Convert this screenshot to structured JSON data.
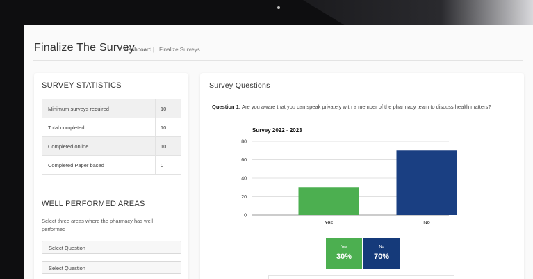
{
  "header": {
    "title": "Finalize The Survey",
    "breadcrumb_dashboard": "Dashboard",
    "breadcrumb_separator": "|",
    "breadcrumb_current": "Finalize Surveys"
  },
  "statistics": {
    "heading": "SURVEY STATISTICS",
    "rows": [
      {
        "label": "Minimum surveys required",
        "value": "10"
      },
      {
        "label": "Total completed",
        "value": "10"
      },
      {
        "label": "Completed online",
        "value": "10"
      },
      {
        "label": "Completed Paper based",
        "value": "0"
      }
    ]
  },
  "well_performed": {
    "heading": "WELL PERFORMED AREAS",
    "help_text": "Select three areas where the pharmacy has well performed",
    "selects": [
      "Select Question",
      "Select Question"
    ]
  },
  "questions": {
    "heading": "Survey Questions",
    "question_label": "Question 1:",
    "question_text": "Are you aware that you can speak privately with a member of the pharmacy team to discuss health matters?"
  },
  "results": [
    {
      "label": "Yes",
      "value": "30%",
      "color": "#4caf50"
    },
    {
      "label": "No",
      "value": "70%",
      "color": "#153a7a"
    }
  ],
  "chart_data": {
    "type": "bar",
    "title": "Survey 2022 - 2023",
    "categories": [
      "Yes",
      "No"
    ],
    "values": [
      30,
      70
    ],
    "colors": [
      "#4caf50",
      "#1a3f82"
    ],
    "ylim": [
      0,
      80
    ],
    "yticks": [
      0,
      20,
      40,
      60,
      80
    ],
    "grid": true,
    "xlabel": "",
    "ylabel": ""
  }
}
